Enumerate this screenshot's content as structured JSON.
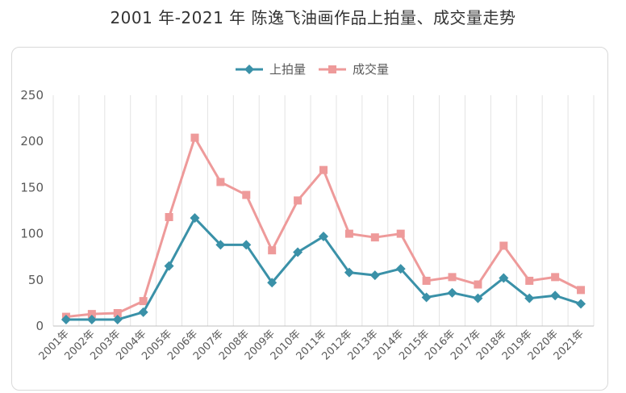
{
  "title": "2001 年-2021 年  陈逸飞油画作品上拍量、成交量走势",
  "chart_data": {
    "type": "line",
    "categories": [
      "2001年",
      "2002年",
      "2003年",
      "2004年",
      "2005年",
      "2006年",
      "2007年",
      "2008年",
      "2009年",
      "2010年",
      "2011年",
      "2012年",
      "2013年",
      "2014年",
      "2015年",
      "2016年",
      "2017年",
      "2018年",
      "2019年",
      "2020年",
      "2021年"
    ],
    "series": [
      {
        "name": "上拍量",
        "color": "#3a91a8",
        "marker": "diamond",
        "values": [
          7,
          7,
          7,
          15,
          65,
          117,
          88,
          88,
          47,
          80,
          97,
          58,
          55,
          62,
          31,
          36,
          30,
          52,
          30,
          33,
          24
        ]
      },
      {
        "name": "成交量",
        "color": "#ee9a9a",
        "marker": "square",
        "values": [
          10,
          13,
          14,
          27,
          118,
          204,
          156,
          142,
          82,
          136,
          169,
          100,
          96,
          100,
          49,
          53,
          45,
          87,
          49,
          53,
          39
        ]
      }
    ],
    "ylim": [
      0,
      250
    ],
    "yticks": [
      0,
      50,
      100,
      150,
      200,
      250
    ],
    "grid": "vertical",
    "legend": "top-center"
  }
}
